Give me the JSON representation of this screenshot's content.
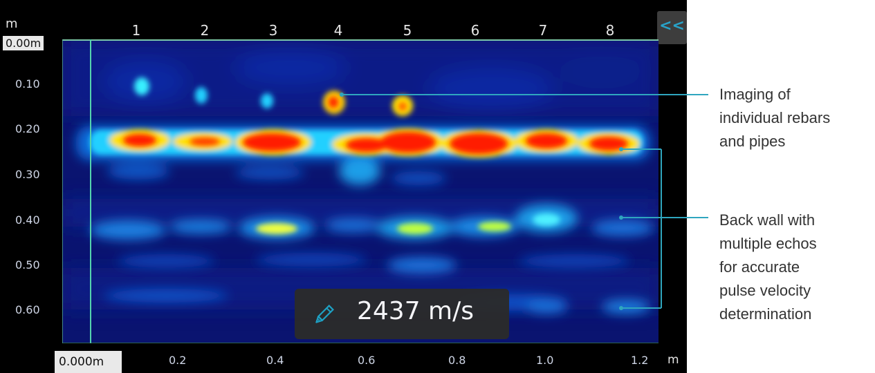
{
  "scan": {
    "depth_unit": "m",
    "distance_unit": "m",
    "zero_depth": "0.00m",
    "zero_distance": "0.000m",
    "depth_labels": [
      "0.10",
      "0.20",
      "0.30",
      "0.40",
      "0.50",
      "0.60"
    ],
    "distance_labels": [
      "0.2",
      "0.4",
      "0.6",
      "0.8",
      "1.0",
      "1.2"
    ],
    "marker_labels": [
      "1",
      "2",
      "3",
      "4",
      "5",
      "6",
      "7",
      "8"
    ],
    "collapse_label": "<<",
    "velocity": "2437 m/s",
    "colors": {
      "background": "#0a1470",
      "frame": "#54d3ae",
      "accent": "#28a3c9"
    }
  },
  "annotations": {
    "rebars_lines": [
      "Imaging of",
      "individual rebars",
      "and pipes"
    ],
    "backwall_lines": [
      "Back wall with",
      "multiple echos",
      "for accurate",
      "pulse velocity",
      "determination"
    ]
  },
  "icons": {
    "edit": "pencil-icon",
    "collapse": "double-chevron-left-icon"
  }
}
